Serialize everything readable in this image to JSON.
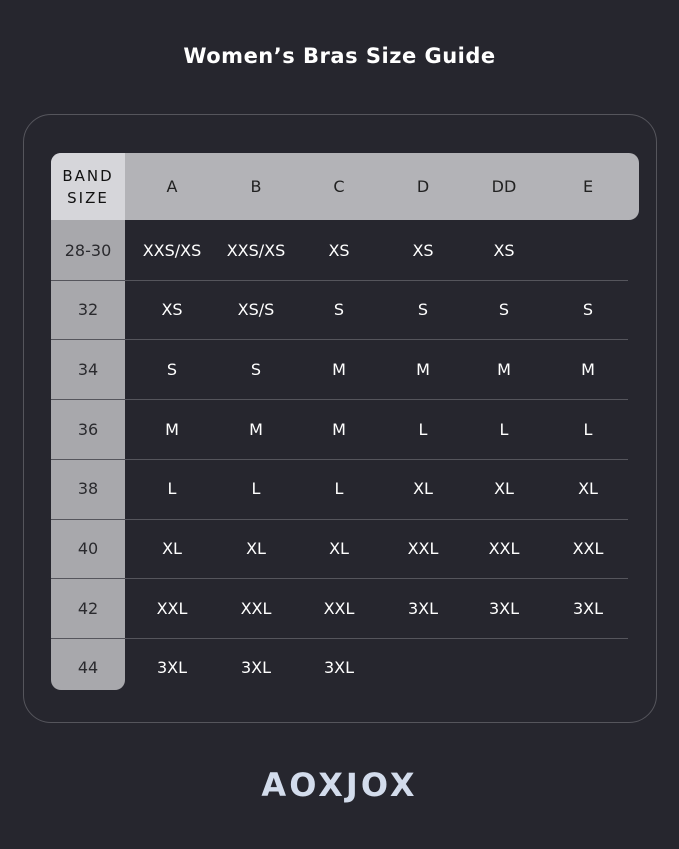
{
  "title": "Women’s Bras Size Guide",
  "band_header": [
    "BAND",
    "SIZE"
  ],
  "cups": [
    "A",
    "B",
    "C",
    "D",
    "DD",
    "E"
  ],
  "rows": [
    {
      "band": "28-30",
      "sizes": [
        "XXS/XS",
        "XXS/XS",
        "XS",
        "XS",
        "XS",
        ""
      ]
    },
    {
      "band": "32",
      "sizes": [
        "XS",
        "XS/S",
        "S",
        "S",
        "S",
        "S"
      ]
    },
    {
      "band": "34",
      "sizes": [
        "S",
        "S",
        "M",
        "M",
        "M",
        "M"
      ]
    },
    {
      "band": "36",
      "sizes": [
        "M",
        "M",
        "M",
        "L",
        "L",
        "L"
      ]
    },
    {
      "band": "38",
      "sizes": [
        "L",
        "L",
        "L",
        "XL",
        "XL",
        "XL"
      ]
    },
    {
      "band": "40",
      "sizes": [
        "XL",
        "XL",
        "XL",
        "XXL",
        "XXL",
        "XXL"
      ]
    },
    {
      "band": "42",
      "sizes": [
        "XXL",
        "XXL",
        "XXL",
        "3XL",
        "3XL",
        "3XL"
      ]
    },
    {
      "band": "44",
      "sizes": [
        "3XL",
        "3XL",
        "3XL",
        "",
        "",
        ""
      ]
    }
  ],
  "brand": "AOXJOX"
}
